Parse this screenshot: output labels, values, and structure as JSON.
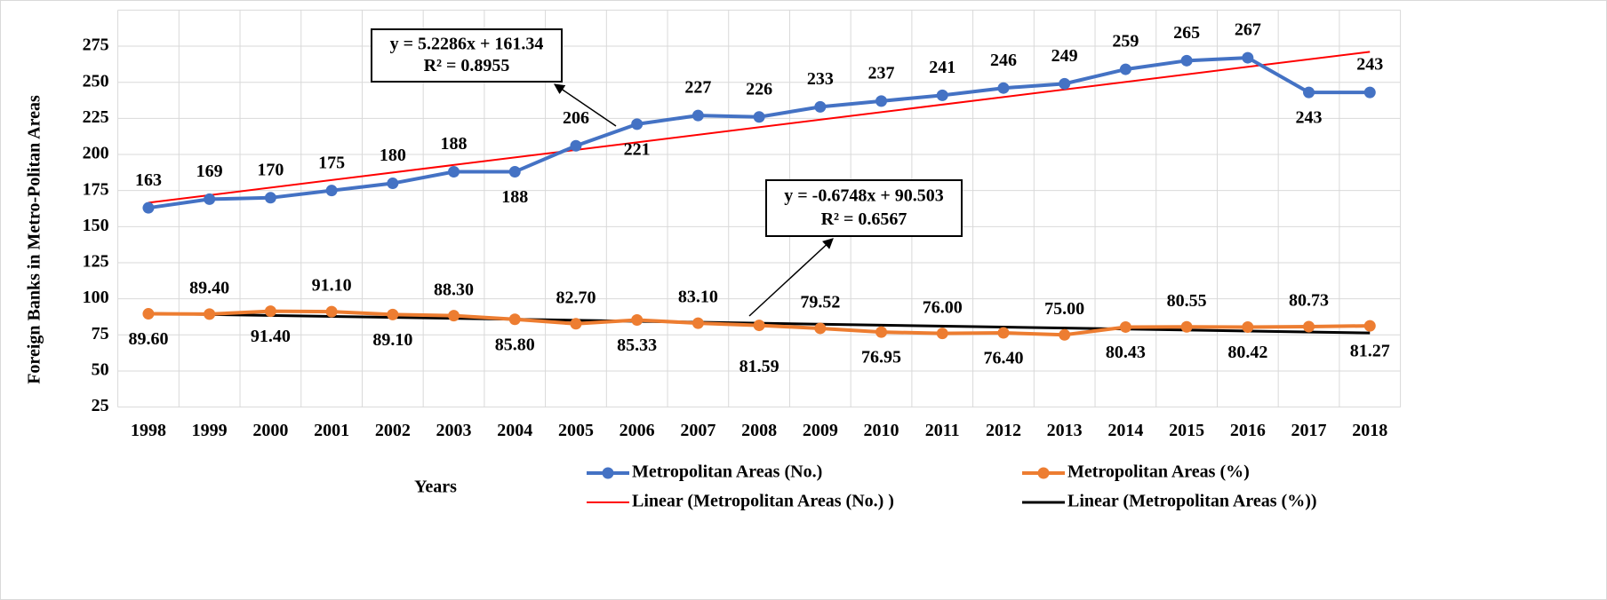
{
  "chart_data": {
    "type": "line",
    "x_label": "Years",
    "y_label": "Foreign Banks in Metro-Politan Areas",
    "categories": [
      "1998",
      "1999",
      "2000",
      "2001",
      "2002",
      "2003",
      "2004",
      "2005",
      "2006",
      "2007",
      "2008",
      "2009",
      "2010",
      "2011",
      "2012",
      "2013",
      "2014",
      "2015",
      "2016",
      "2017",
      "2018"
    ],
    "series": [
      {
        "name": "Metropolitan Areas (No.)",
        "color": "#4472c4",
        "values": [
          163,
          169,
          170,
          175,
          180,
          188,
          188,
          206,
          221,
          227,
          226,
          233,
          237,
          241,
          246,
          249,
          259,
          265,
          267,
          243,
          243
        ]
      },
      {
        "name": "Metropolitan Areas (%)",
        "color": "#ed7d31",
        "values": [
          89.6,
          89.4,
          91.4,
          91.1,
          89.1,
          88.3,
          85.8,
          82.7,
          85.33,
          83.1,
          81.59,
          79.52,
          76.95,
          76,
          76.4,
          75,
          80.43,
          80.55,
          80.42,
          80.73,
          81.27
        ],
        "value_labels": [
          "89.60",
          "89.40",
          "91.40",
          "91.10",
          "89.10",
          "88.30",
          "85.80",
          "82.70",
          "85.33",
          "83.10",
          "81.59",
          "79.52",
          "76.95",
          "76.00",
          "76.40",
          "75.00",
          "80.43",
          "80.55",
          "80.42",
          "80.73",
          "81.27"
        ]
      }
    ],
    "trendlines": [
      {
        "name": "Linear (Metropolitan Areas (No.) )",
        "color": "#ff0000",
        "series": 0,
        "equation": "y = 5.2286x + 161.34",
        "r2": "R² = 0.8955"
      },
      {
        "name": "Linear (Metropolitan Areas (%))",
        "color": "#000000",
        "series": 1,
        "equation": "y = -0.6748x + 90.503",
        "r2": "R² = 0.6567"
      }
    ],
    "ylim": [
      25,
      300
    ],
    "yticks": [
      25,
      50,
      75,
      100,
      125,
      150,
      175,
      200,
      225,
      250,
      275
    ],
    "grid": true
  }
}
